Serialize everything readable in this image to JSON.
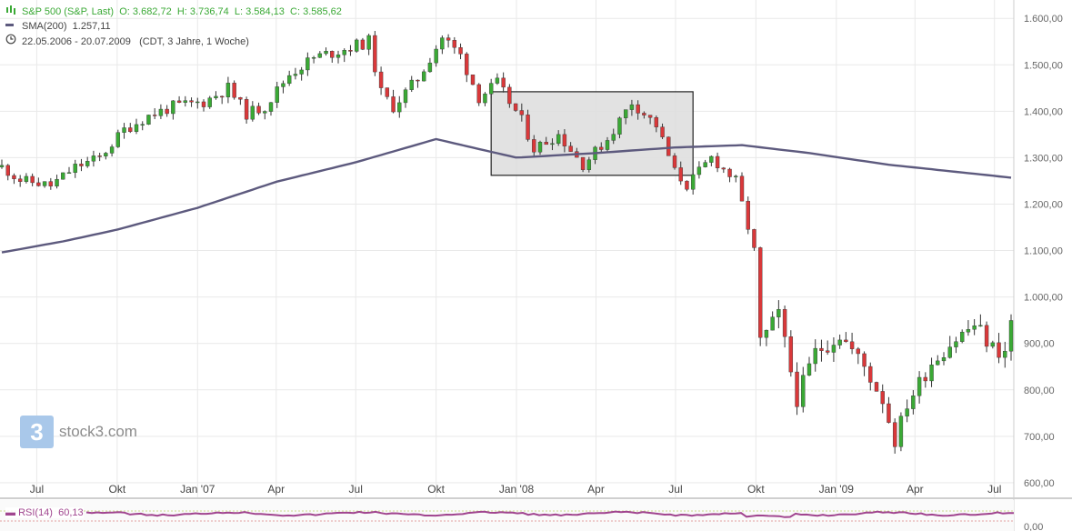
{
  "legend": {
    "instrument": "S&P 500 (S&P, Last)",
    "open": "O: 3.682,72",
    "high": "H: 3.736,74",
    "low": "L: 3.584,13",
    "close": "C: 3.585,62",
    "sma_label": "SMA(200)",
    "sma_value": "1.257,11",
    "period": "22.05.2006 - 20.07.2009",
    "period_note": "(CDT, 3 Jahre, 1 Woche)"
  },
  "branding": {
    "logo_mark": "3",
    "logo_text": "stock3.com"
  },
  "rsi": {
    "label": "RSI(14)",
    "value": "60,13",
    "axis_label": "0,00"
  },
  "colors": {
    "up": "#3aa935",
    "down": "#d9383a",
    "sma": "#5d5a7e",
    "rsi": "#a0458f",
    "grid": "#e9e9e9",
    "axis_text": "#666666",
    "highlight_fill": "#dddddd",
    "highlight_stroke": "#222222"
  },
  "chart_data": {
    "type": "candlestick",
    "x_ticks": [
      "Jul",
      "Okt",
      "Jan '07",
      "Apr",
      "Jul",
      "Okt",
      "Jan '08",
      "Apr",
      "Jul",
      "Okt",
      "Jan '09",
      "Apr",
      "Jul"
    ],
    "y_ticks": [
      "1.600,00",
      "1.500,00",
      "1.400,00",
      "1.300,00",
      "1.200,00",
      "1.100,00",
      "1.000,00",
      "900,00",
      "800,00",
      "700,00",
      "600,00"
    ],
    "ylim": [
      590,
      1620
    ],
    "x_range": [
      "2006-05-22",
      "2009-07-20"
    ],
    "interval": "1 week",
    "highlight_box": {
      "from": "2007-12-03",
      "to": "2008-07-21",
      "low": 1262,
      "high": 1442
    },
    "sma_200": [
      [
        "2006-05-22",
        1096
      ],
      [
        "2006-08-01",
        1120
      ],
      [
        "2006-10-01",
        1145
      ],
      [
        "2007-01-01",
        1192
      ],
      [
        "2007-04-01",
        1248
      ],
      [
        "2007-07-01",
        1290
      ],
      [
        "2007-10-01",
        1340
      ],
      [
        "2008-01-01",
        1300
      ],
      [
        "2008-04-01",
        1310
      ],
      [
        "2008-07-01",
        1322
      ],
      [
        "2008-09-15",
        1327
      ],
      [
        "2008-12-01",
        1310
      ],
      [
        "2009-03-01",
        1285
      ],
      [
        "2009-07-20",
        1257
      ]
    ],
    "close": [
      [
        "2006-05-22",
        1280
      ],
      [
        "2006-06-12",
        1252
      ],
      [
        "2006-07-17",
        1240
      ],
      [
        "2006-08-14",
        1280
      ],
      [
        "2006-09-11",
        1300
      ],
      [
        "2006-10-09",
        1360
      ],
      [
        "2006-11-06",
        1390
      ],
      [
        "2006-12-04",
        1410
      ],
      [
        "2007-01-08",
        1420
      ],
      [
        "2007-02-05",
        1450
      ],
      [
        "2007-02-26",
        1395
      ],
      [
        "2007-03-19",
        1410
      ],
      [
        "2007-04-16",
        1480
      ],
      [
        "2007-05-14",
        1515
      ],
      [
        "2007-06-11",
        1530
      ],
      [
        "2007-07-16",
        1550
      ],
      [
        "2007-07-30",
        1440
      ],
      [
        "2007-08-13",
        1410
      ],
      [
        "2007-09-10",
        1470
      ],
      [
        "2007-10-08",
        1560
      ],
      [
        "2007-10-29",
        1520
      ],
      [
        "2007-11-19",
        1430
      ],
      [
        "2007-12-10",
        1460
      ],
      [
        "2008-01-07",
        1380
      ],
      [
        "2008-01-21",
        1320
      ],
      [
        "2008-02-18",
        1350
      ],
      [
        "2008-03-17",
        1285
      ],
      [
        "2008-04-14",
        1340
      ],
      [
        "2008-05-12",
        1420
      ],
      [
        "2008-06-09",
        1370
      ],
      [
        "2008-06-30",
        1270
      ],
      [
        "2008-07-14",
        1240
      ],
      [
        "2008-08-11",
        1300
      ],
      [
        "2008-09-08",
        1250
      ],
      [
        "2008-09-29",
        1100
      ],
      [
        "2008-10-06",
        900
      ],
      [
        "2008-10-27",
        960
      ],
      [
        "2008-11-17",
        780
      ],
      [
        "2008-12-08",
        880
      ],
      [
        "2009-01-05",
        920
      ],
      [
        "2009-02-02",
        850
      ],
      [
        "2009-02-23",
        780
      ],
      [
        "2009-03-09",
        690
      ],
      [
        "2009-03-23",
        770
      ],
      [
        "2009-04-20",
        860
      ],
      [
        "2009-05-11",
        900
      ],
      [
        "2009-06-08",
        940
      ],
      [
        "2009-06-29",
        890
      ],
      [
        "2009-07-13",
        880
      ],
      [
        "2009-07-20",
        945
      ]
    ]
  }
}
